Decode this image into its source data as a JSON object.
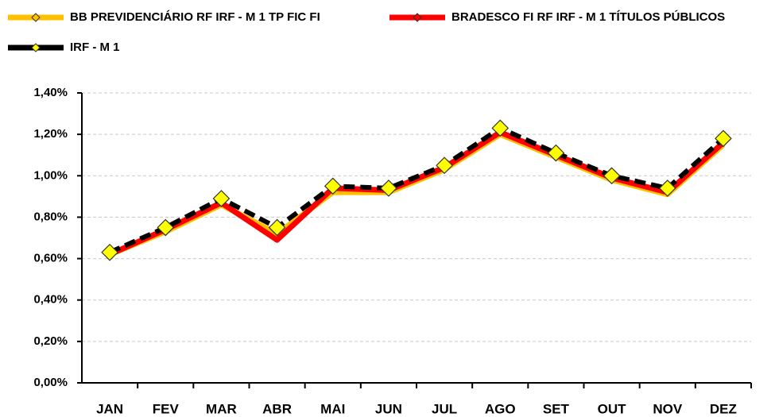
{
  "chart_data": {
    "type": "line",
    "categories": [
      "JAN",
      "FEV",
      "MAR",
      "ABR",
      "MAI",
      "JUN",
      "JUL",
      "AGO",
      "SET",
      "OUT",
      "NOV",
      "DEZ"
    ],
    "series": [
      {
        "name": "BB PREVIDENCIÁRIO RF IRF - M 1 TP FIC FI",
        "color": "#ffc000",
        "values": [
          0.62,
          0.73,
          0.86,
          0.72,
          0.92,
          0.92,
          1.03,
          1.2,
          1.09,
          0.98,
          0.91,
          1.15
        ]
      },
      {
        "name": "BRADESCO FI RF IRF - M 1 TÍTULOS PÚBLICOS",
        "color": "#ff0000",
        "values": [
          0.62,
          0.74,
          0.87,
          0.69,
          0.94,
          0.93,
          1.04,
          1.21,
          1.1,
          0.99,
          0.92,
          1.16
        ]
      },
      {
        "name": "IRF - M 1",
        "color": "#000000",
        "marker_color": "#ffff00",
        "dashed": true,
        "values": [
          0.63,
          0.75,
          0.89,
          0.75,
          0.95,
          0.94,
          1.05,
          1.23,
          1.11,
          1.0,
          0.94,
          1.18
        ]
      }
    ],
    "ylim": [
      0,
      1.4
    ],
    "yticks": [
      {
        "value": 0,
        "label": "0,00%"
      },
      {
        "value": 0.2,
        "label": "0,20%"
      },
      {
        "value": 0.4,
        "label": "0,40%"
      },
      {
        "value": 0.6,
        "label": "0,60%"
      },
      {
        "value": 0.8,
        "label": "0,80%"
      },
      {
        "value": 1.0,
        "label": "1,00%"
      },
      {
        "value": 1.2,
        "label": "1,20%"
      },
      {
        "value": 1.4,
        "label": "1,40%"
      }
    ],
    "grid": true
  }
}
